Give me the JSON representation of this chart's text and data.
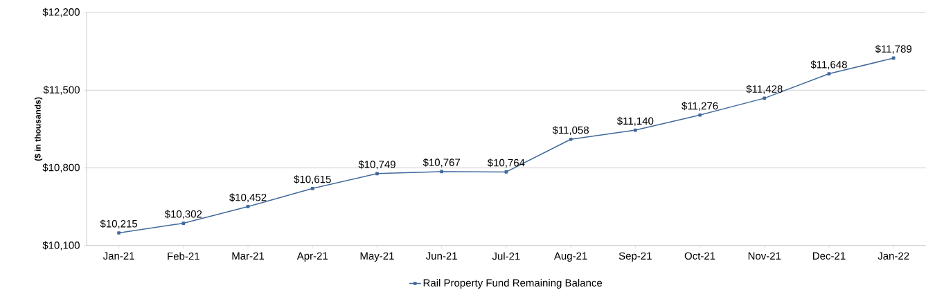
{
  "chart_data": {
    "type": "line",
    "ylabel": "($ in thousands)",
    "categories": [
      "Jan-21",
      "Feb-21",
      "Mar-21",
      "Apr-21",
      "May-21",
      "Jun-21",
      "Jul-21",
      "Aug-21",
      "Sep-21",
      "Oct-21",
      "Nov-21",
      "Dec-21",
      "Jan-22"
    ],
    "series": [
      {
        "name": "Rail Property Fund Remaining Balance",
        "color": "#41699c",
        "values": [
          10215,
          10302,
          10452,
          10615,
          10749,
          10767,
          10764,
          11058,
          11140,
          11276,
          11428,
          11648,
          11789
        ],
        "value_labels": [
          "$10,215",
          "$10,302",
          "$10,452",
          "$10,615",
          "$10,749",
          "$10,767",
          "$10,764",
          "$11,058",
          "$11,140",
          "$11,276",
          "$11,428",
          "$11,648",
          "$11,789"
        ]
      }
    ],
    "ylim": [
      10100,
      12200
    ],
    "yticks": [
      {
        "value": 10100,
        "label": "$10,100"
      },
      {
        "value": 10800,
        "label": "$10,800"
      },
      {
        "value": 11500,
        "label": "$11,500"
      },
      {
        "value": 12200,
        "label": "$12,200"
      }
    ],
    "grid": "y",
    "legend": "bottom",
    "marker": "square",
    "line_style": "solid"
  }
}
